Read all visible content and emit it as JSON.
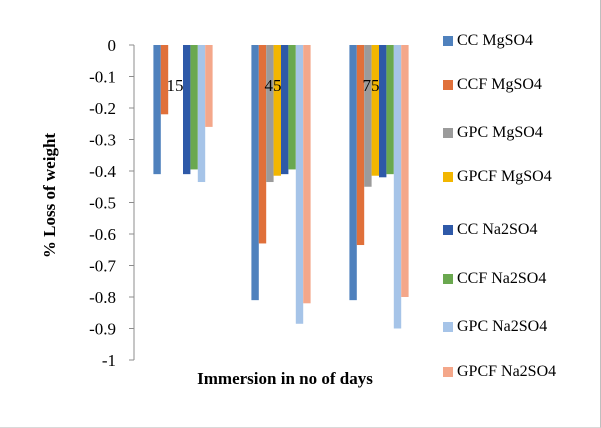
{
  "chart_data": {
    "type": "bar",
    "title": "",
    "xlabel": "Immersion in no of days",
    "ylabel": "% Loss of weight",
    "categories": [
      "15",
      "45",
      "75"
    ],
    "ylim": [
      -1,
      0
    ],
    "yticks": [
      "0",
      "-0.1",
      "-0.2",
      "-0.3",
      "-0.4",
      "-0.5",
      "-0.6",
      "-0.7",
      "-0.8",
      "-0.9",
      "-1"
    ],
    "grid": false,
    "legend_position": "right",
    "series": [
      {
        "name": "CC MgSO4",
        "color": "#4f81bd",
        "values": [
          -0.41,
          -0.81,
          -0.81
        ]
      },
      {
        "name": "CCF MgSO4",
        "color": "#e0703a",
        "values": [
          -0.22,
          -0.63,
          -0.635
        ]
      },
      {
        "name": "GPC MgSO4",
        "color": "#9b9b9b",
        "values": [
          0,
          -0.435,
          -0.45
        ]
      },
      {
        "name": "GPCF MgSO4",
        "color": "#f2b600",
        "values": [
          0,
          -0.415,
          -0.415
        ]
      },
      {
        "name": "CC Na2SO4",
        "color": "#2e59a8",
        "values": [
          -0.41,
          -0.41,
          -0.42
        ]
      },
      {
        "name": "CCF Na2SO4",
        "color": "#6aa84f",
        "values": [
          -0.395,
          -0.395,
          -0.41
        ]
      },
      {
        "name": "GPC Na2SO4",
        "color": "#a6c4e8",
        "values": [
          -0.435,
          -0.885,
          -0.9
        ]
      },
      {
        "name": "GPCF Na2SO4",
        "color": "#f4a78a",
        "values": [
          -0.26,
          -0.82,
          -0.8
        ]
      }
    ]
  }
}
